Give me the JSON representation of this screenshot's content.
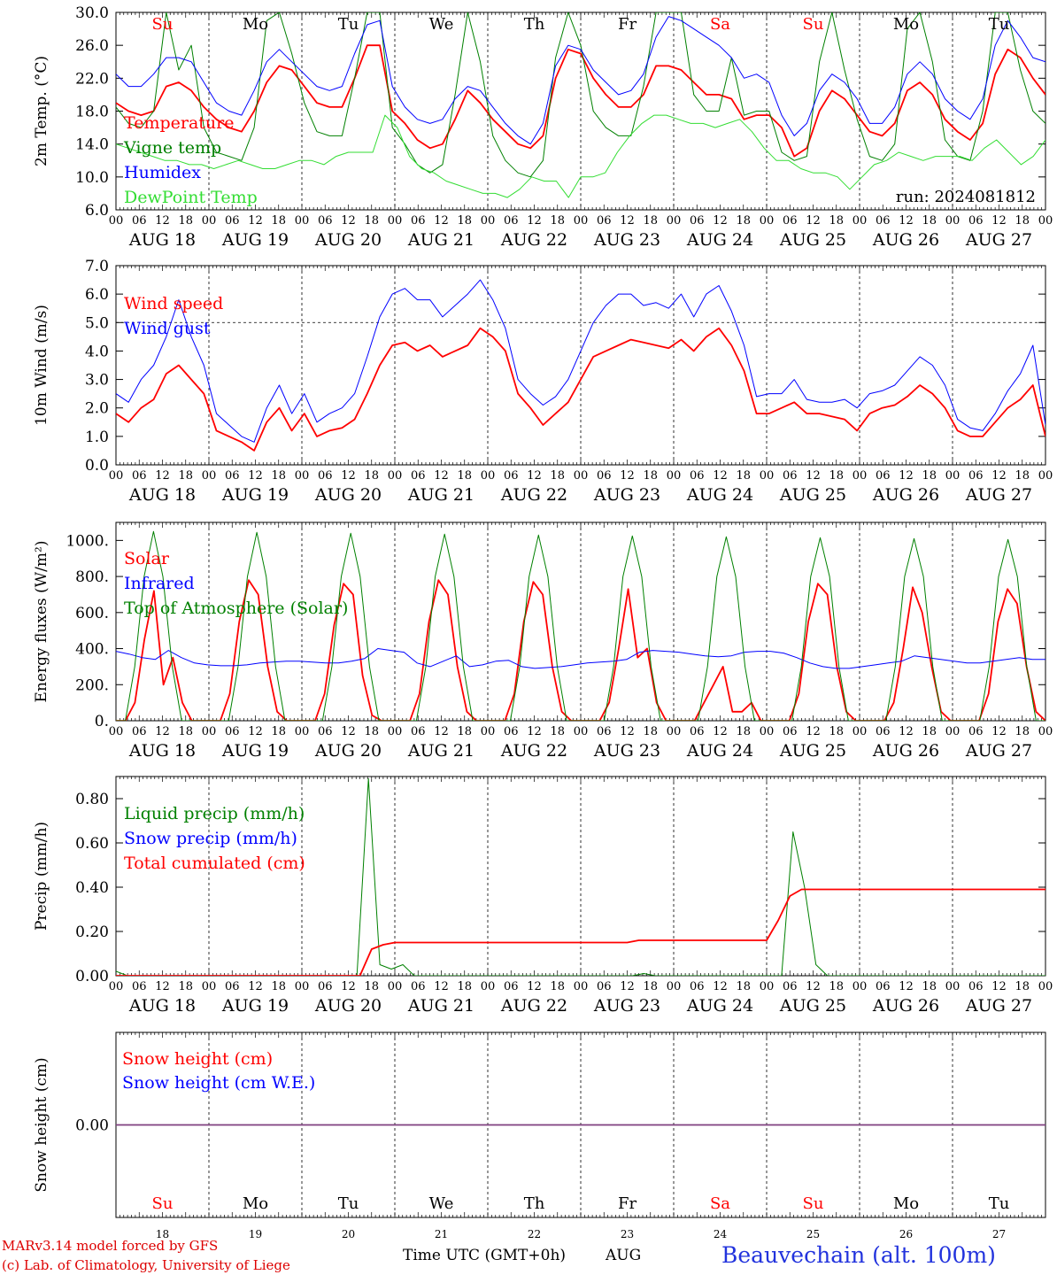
{
  "days": [
    "AUG 18",
    "AUG 19",
    "AUG 20",
    "AUG 21",
    "AUG 22",
    "AUG 23",
    "AUG 24",
    "AUG 25",
    "AUG 26",
    "AUG 27"
  ],
  "day_numbers": [
    "18",
    "19",
    "20",
    "21",
    "22",
    "23",
    "24",
    "25",
    "26",
    "27"
  ],
  "weekdays": [
    "Su",
    "Mo",
    "Tu",
    "We",
    "Th",
    "Fr",
    "Sa",
    "Su",
    "Mo",
    "Tu"
  ],
  "weekend_days": [
    0,
    6,
    7
  ],
  "hour_ticks": [
    "00",
    "06",
    "12",
    "18"
  ],
  "final_tick": "00",
  "colors": {
    "red": "#ff0000",
    "green": "#008000",
    "blue": "#0000ff",
    "lime": "#33dd33",
    "purple": "#7f3f7f",
    "footer_blue": "#2233dd"
  },
  "run_label": "run: 2024081812",
  "footer": {
    "model": "MARv3.14 model forced by GFS",
    "credit": "(c) Lab. of Climatology, University of Liege",
    "xlabel": "Time UTC (GMT+0h)",
    "month": "AUG",
    "station": "Beauvechain (alt. 100m)"
  },
  "chart_data": [
    {
      "type": "line",
      "ylabel": "2m Temp. (°C)",
      "ylim": [
        6,
        30
      ],
      "yticks": [
        "6.0",
        "10.0",
        "14.0",
        "18.0",
        "22.0",
        "26.0",
        "30.0"
      ],
      "x_unit": "hours since AUG 18 00 UTC, 3-hourly, 0-240",
      "legend": [
        "Temperature",
        "Vigne temp",
        "Humidex",
        "DewPoint Temp"
      ],
      "series": [
        {
          "name": "Temperature",
          "color": "red",
          "values": [
            19.0,
            18.0,
            17.5,
            18.0,
            21.0,
            21.5,
            20.5,
            18.5,
            17.0,
            16.0,
            15.5,
            18.0,
            21.5,
            23.5,
            23.0,
            21.0,
            19.0,
            18.5,
            18.5,
            22.0,
            26.0,
            26.0,
            18.0,
            16.5,
            14.5,
            13.5,
            14.0,
            17.0,
            20.5,
            19.0,
            17.0,
            15.5,
            14.0,
            13.5,
            15.0,
            22.0,
            25.5,
            25.0,
            22.0,
            20.0,
            18.5,
            18.5,
            20.0,
            23.5,
            23.5,
            23.0,
            21.5,
            20.0,
            20.0,
            19.5,
            17.0,
            17.5,
            17.5,
            16.0,
            12.5,
            13.5,
            18.0,
            20.5,
            19.5,
            17.5,
            15.5,
            15.0,
            16.5,
            20.5,
            21.5,
            20.0,
            17.0,
            15.5,
            14.5,
            16.5,
            22.5,
            25.5,
            24.5,
            22.0,
            20.0
          ]
        },
        {
          "name": "Vigne temp",
          "color": "green",
          "values": [
            18.5,
            16.5,
            16.0,
            18.0,
            30.0,
            23.0,
            26.0,
            16.0,
            13.0,
            12.5,
            12.0,
            16.0,
            29.0,
            30.0,
            25.0,
            19.0,
            15.5,
            15.0,
            15.0,
            22.0,
            30.0,
            30.0,
            16.0,
            14.0,
            11.5,
            10.5,
            11.5,
            20.0,
            30.0,
            24.0,
            15.0,
            12.0,
            10.5,
            10.0,
            12.0,
            24.5,
            30.0,
            26.0,
            18.0,
            16.0,
            15.0,
            15.0,
            21.0,
            30.0,
            30.0,
            30.0,
            20.0,
            18.0,
            18.0,
            24.5,
            17.5,
            18.0,
            18.0,
            13.0,
            12.0,
            12.5,
            24.0,
            30.0,
            23.0,
            17.0,
            12.5,
            12.0,
            14.0,
            28.0,
            30.0,
            24.0,
            14.5,
            12.5,
            12.0,
            18.0,
            30.0,
            30.0,
            23.0,
            18.0,
            16.5
          ]
        },
        {
          "name": "Humidex",
          "color": "blue",
          "values": [
            22.5,
            21.0,
            21.0,
            22.5,
            24.5,
            24.5,
            24.0,
            21.5,
            19.0,
            18.0,
            17.5,
            20.5,
            24.0,
            25.5,
            24.0,
            22.5,
            21.0,
            20.5,
            21.0,
            25.0,
            28.5,
            29.0,
            21.0,
            18.5,
            17.0,
            16.5,
            17.0,
            19.5,
            21.0,
            20.5,
            18.5,
            16.5,
            15.0,
            14.0,
            16.5,
            23.5,
            26.0,
            25.5,
            23.0,
            21.5,
            20.0,
            20.5,
            22.5,
            27.0,
            29.5,
            29.0,
            28.0,
            27.0,
            26.0,
            24.5,
            22.0,
            22.5,
            21.5,
            17.5,
            15.0,
            16.5,
            20.5,
            22.5,
            21.5,
            19.5,
            16.5,
            16.5,
            18.5,
            22.5,
            24.0,
            22.5,
            19.5,
            18.0,
            17.0,
            19.5,
            26.0,
            29.0,
            27.0,
            24.5,
            24.0
          ]
        },
        {
          "name": "DewPoint Temp",
          "color": "lime",
          "values": [
            14.0,
            13.5,
            13.0,
            12.5,
            12.0,
            12.0,
            11.5,
            11.5,
            11.0,
            11.5,
            12.0,
            11.5,
            11.0,
            11.0,
            11.5,
            12.0,
            12.0,
            11.5,
            12.5,
            13.0,
            13.0,
            13.0,
            17.5,
            16.0,
            12.5,
            11.0,
            10.5,
            9.5,
            9.0,
            8.5,
            8.0,
            8.0,
            7.5,
            8.5,
            10.0,
            9.5,
            9.5,
            7.5,
            10.0,
            10.0,
            10.5,
            13.0,
            15.0,
            16.5,
            17.5,
            17.5,
            17.0,
            16.5,
            16.5,
            16.0,
            16.5,
            17.0,
            15.5,
            13.5,
            12.0,
            12.0,
            11.0,
            10.5,
            10.5,
            10.0,
            8.5,
            10.0,
            11.5,
            12.0,
            13.0,
            12.5,
            12.0,
            12.5,
            12.5,
            12.5,
            12.0,
            13.5,
            14.5,
            13.0,
            11.5,
            12.5,
            14.5
          ]
        }
      ]
    },
    {
      "type": "line",
      "ylabel": "10m Wind (m/s)",
      "ylim": [
        0,
        7
      ],
      "yticks": [
        "0.0",
        "1.0",
        "2.0",
        "3.0",
        "4.0",
        "5.0",
        "6.0",
        "7.0"
      ],
      "reference_line": 5.0,
      "x_unit": "hours since AUG 18 00 UTC, 3-hourly, 0-240",
      "legend": [
        "Wind speed",
        "Wind gust"
      ],
      "series": [
        {
          "name": "Wind speed",
          "color": "red",
          "values": [
            1.8,
            1.5,
            2.0,
            2.3,
            3.2,
            3.5,
            3.0,
            2.5,
            1.2,
            1.0,
            0.8,
            0.5,
            1.5,
            2.0,
            1.2,
            1.8,
            1.0,
            1.2,
            1.3,
            1.6,
            2.5,
            3.5,
            4.2,
            4.3,
            4.0,
            4.2,
            3.8,
            4.0,
            4.2,
            4.8,
            4.5,
            4.0,
            2.5,
            2.0,
            1.4,
            1.8,
            2.2,
            3.0,
            3.8,
            4.0,
            4.2,
            4.4,
            4.3,
            4.2,
            4.1,
            4.4,
            4.0,
            4.5,
            4.8,
            4.2,
            3.3,
            1.8,
            1.8,
            2.0,
            2.2,
            1.8,
            1.8,
            1.7,
            1.6,
            1.2,
            1.8,
            2.0,
            2.1,
            2.4,
            2.8,
            2.5,
            2.0,
            1.2,
            1.0,
            1.0,
            1.5,
            2.0,
            2.3,
            2.8,
            1.0
          ]
        },
        {
          "name": "Wind gust",
          "color": "blue",
          "values": [
            2.5,
            2.2,
            3.0,
            3.5,
            4.5,
            5.8,
            4.5,
            3.5,
            1.8,
            1.4,
            1.0,
            0.8,
            2.0,
            2.8,
            1.8,
            2.5,
            1.5,
            1.8,
            2.0,
            2.5,
            3.8,
            5.2,
            6.0,
            6.2,
            5.8,
            5.8,
            5.2,
            5.6,
            6.0,
            6.5,
            5.8,
            4.8,
            3.0,
            2.5,
            2.1,
            2.4,
            3.0,
            4.0,
            5.0,
            5.6,
            6.0,
            6.0,
            5.6,
            5.7,
            5.5,
            6.0,
            5.2,
            6.0,
            6.3,
            5.4,
            4.2,
            2.4,
            2.5,
            2.5,
            3.0,
            2.3,
            2.2,
            2.2,
            2.3,
            2.0,
            2.5,
            2.6,
            2.8,
            3.3,
            3.8,
            3.5,
            2.8,
            1.6,
            1.3,
            1.2,
            1.8,
            2.6,
            3.2,
            4.2,
            1.4
          ]
        }
      ]
    },
    {
      "type": "line",
      "ylabel": "Energy fluxes (W/m²)",
      "ylim": [
        0,
        1100
      ],
      "yticks": [
        "0.",
        "200.",
        "400.",
        "600.",
        "800.",
        "1000."
      ],
      "x_unit": "hours since AUG 18 00 UTC, 3-hourly, 0-240",
      "legend": [
        "Solar",
        "Infrared",
        "Top of Atmosphere (Solar)"
      ],
      "series": [
        {
          "name": "Solar",
          "color": "red",
          "values": [
            0,
            0,
            100,
            450,
            720,
            200,
            350,
            100,
            0,
            0,
            0,
            0,
            150,
            550,
            780,
            700,
            300,
            50,
            0,
            0,
            0,
            0,
            150,
            530,
            760,
            700,
            250,
            30,
            0,
            0,
            0,
            0,
            150,
            550,
            780,
            700,
            300,
            50,
            0,
            0,
            0,
            0,
            150,
            550,
            770,
            700,
            300,
            50,
            0,
            0,
            0,
            0,
            100,
            400,
            730,
            350,
            400,
            100,
            0,
            0,
            0,
            0,
            100,
            200,
            300,
            50,
            50,
            100,
            0,
            0,
            0,
            0,
            150,
            550,
            760,
            700,
            300,
            50,
            0,
            0,
            0,
            0,
            100,
            400,
            740,
            600,
            300,
            50,
            0,
            0,
            0,
            0,
            150,
            550,
            730,
            650,
            300,
            50,
            0
          ]
        },
        {
          "name": "Infrared",
          "color": "blue",
          "values": [
            385,
            370,
            350,
            340,
            390,
            350,
            320,
            310,
            305,
            305,
            310,
            320,
            325,
            330,
            330,
            325,
            320,
            320,
            330,
            345,
            400,
            390,
            380,
            320,
            300,
            330,
            360,
            300,
            310,
            330,
            335,
            300,
            290,
            295,
            300,
            310,
            320,
            325,
            330,
            340,
            380,
            390,
            385,
            380,
            370,
            360,
            355,
            360,
            380,
            385,
            385,
            375,
            350,
            320,
            300,
            290,
            290,
            300,
            310,
            320,
            330,
            360,
            350,
            340,
            330,
            320,
            320,
            330,
            340,
            350,
            340,
            340
          ]
        },
        {
          "name": "Top of Atmosphere (Solar)",
          "color": "green",
          "values": [
            0,
            0,
            300,
            800,
            1050,
            800,
            300,
            0,
            0,
            0,
            0,
            0,
            0,
            300,
            800,
            1045,
            800,
            300,
            0,
            0,
            0,
            0,
            0,
            300,
            800,
            1040,
            800,
            300,
            0,
            0,
            0,
            0,
            0,
            300,
            800,
            1035,
            800,
            300,
            0,
            0,
            0,
            0,
            0,
            300,
            800,
            1030,
            800,
            300,
            0,
            0,
            0,
            0,
            0,
            300,
            800,
            1025,
            800,
            300,
            0,
            0,
            0,
            0,
            0,
            300,
            800,
            1020,
            800,
            300,
            0,
            0,
            0,
            0,
            0,
            300,
            800,
            1015,
            800,
            300,
            0,
            0,
            0,
            0,
            0,
            300,
            800,
            1010,
            800,
            300,
            0,
            0,
            0,
            0,
            0,
            300,
            800,
            1005,
            800,
            300,
            0,
            0
          ]
        }
      ]
    },
    {
      "type": "line",
      "ylabel": "Precip (mm/h)",
      "ylim": [
        0,
        0.9
      ],
      "yticks": [
        "0.00",
        "0.20",
        "0.40",
        "0.60",
        "0.80"
      ],
      "x_unit": "hours since AUG 18 00 UTC, 3-hourly, 0-240",
      "legend": [
        "Liquid precip (mm/h)",
        "Snow precip (mm/h)",
        "Total cumulated (cm)"
      ],
      "series": [
        {
          "name": "Liquid precip (mm/h)",
          "color": "green",
          "values": [
            0.02,
            0.0,
            0.0,
            0.0,
            0.0,
            0.0,
            0.0,
            0.0,
            0.0,
            0.0,
            0.0,
            0.0,
            0.0,
            0.0,
            0.0,
            0.0,
            0.0,
            0.0,
            0.0,
            0.0,
            0.0,
            0.0,
            0.89,
            0.05,
            0.03,
            0.05,
            0.0,
            0.0,
            0.0,
            0.0,
            0.0,
            0.0,
            0.0,
            0.0,
            0.0,
            0.0,
            0.0,
            0.0,
            0.0,
            0.0,
            0.0,
            0.0,
            0.0,
            0.0,
            0.0,
            0.0,
            0.01,
            0.0,
            0.0,
            0.0,
            0.0,
            0.0,
            0.0,
            0.0,
            0.0,
            0.0,
            0.0,
            0.0,
            0.0,
            0.65,
            0.4,
            0.05,
            0.0,
            0.0,
            0.0,
            0.0,
            0.0,
            0.0,
            0.0,
            0.0,
            0.0,
            0.0,
            0.0,
            0.0,
            0.0,
            0.0,
            0.0,
            0.0,
            0.0,
            0.0,
            0.0,
            0.0
          ]
        },
        {
          "name": "Total cumulated (cm)",
          "color": "red",
          "values": [
            0.0,
            0.0,
            0.0,
            0.0,
            0.0,
            0.0,
            0.0,
            0.0,
            0.0,
            0.0,
            0.0,
            0.0,
            0.0,
            0.0,
            0.0,
            0.0,
            0.0,
            0.0,
            0.0,
            0.0,
            0.0,
            0.0,
            0.12,
            0.14,
            0.15,
            0.15,
            0.15,
            0.15,
            0.15,
            0.15,
            0.15,
            0.15,
            0.15,
            0.15,
            0.15,
            0.15,
            0.15,
            0.15,
            0.15,
            0.15,
            0.15,
            0.15,
            0.15,
            0.15,
            0.15,
            0.16,
            0.16,
            0.16,
            0.16,
            0.16,
            0.16,
            0.16,
            0.16,
            0.16,
            0.16,
            0.16,
            0.16,
            0.25,
            0.36,
            0.39,
            0.39,
            0.39,
            0.39,
            0.39,
            0.39,
            0.39,
            0.39,
            0.39,
            0.39,
            0.39,
            0.39,
            0.39,
            0.39,
            0.39,
            0.39,
            0.39,
            0.39,
            0.39,
            0.39,
            0.39,
            0.39
          ]
        }
      ]
    },
    {
      "type": "line",
      "ylabel": "Snow height (cm)",
      "ylim": [
        -1,
        1
      ],
      "yticks": [
        "0.00"
      ],
      "x_unit": "hours since AUG 18 00 UTC, 0-240",
      "legend": [
        "Snow height (cm)",
        "Snow height (cm W.E.)"
      ],
      "series": [
        {
          "name": "Snow height (cm)",
          "color": "red",
          "values": [
            0,
            0
          ]
        },
        {
          "name": "Snow height (cm W.E.)",
          "color": "blue",
          "values": [
            0,
            0
          ]
        }
      ]
    }
  ]
}
